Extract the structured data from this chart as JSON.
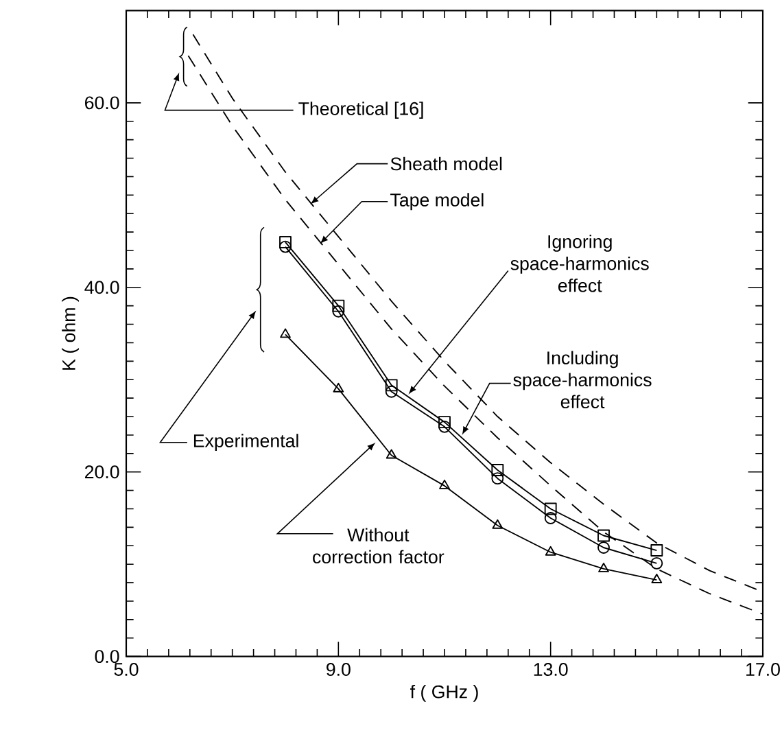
{
  "chart_data": {
    "type": "line",
    "xlabel": "f ( GHz )",
    "ylabel": "K ( ohm )",
    "xlim": [
      5,
      17
    ],
    "ylim": [
      0,
      70
    ],
    "xticks": [
      {
        "value": 5,
        "label": "5.0"
      },
      {
        "value": 9,
        "label": "9.0"
      },
      {
        "value": 13,
        "label": "13.0"
      },
      {
        "value": 17,
        "label": "17.0"
      }
    ],
    "yticks": [
      {
        "value": 0,
        "label": "0.0"
      },
      {
        "value": 20,
        "label": "20.0"
      },
      {
        "value": 40,
        "label": "40.0"
      },
      {
        "value": 60,
        "label": "60.0"
      }
    ],
    "grid": false,
    "series": [
      {
        "color": "#000000",
        "marker": "none",
        "line_style": "dashed",
        "x": [
          6.26,
          7,
          8,
          9,
          10,
          11,
          12,
          13,
          14,
          15,
          16,
          17
        ],
        "values": [
          67.4,
          60.5,
          52.5,
          45.5,
          38.5,
          32,
          26,
          21,
          16.5,
          12.3,
          9.3,
          7.0
        ]
      },
      {
        "color": "#000000",
        "marker": "none",
        "line_style": "dashed",
        "x": [
          6.17,
          7,
          8,
          9,
          10,
          11,
          12,
          13,
          14,
          15,
          16,
          17
        ],
        "values": [
          65.1,
          57.5,
          49.5,
          42.5,
          35.5,
          29.3,
          23.7,
          18.5,
          13.5,
          9.5,
          6.8,
          4.6
        ]
      },
      {
        "color": "#000000",
        "marker": "square",
        "line_style": "solid",
        "x": [
          8,
          9,
          10,
          11,
          12,
          13,
          14,
          15
        ],
        "values": [
          44.9,
          38.0,
          29.4,
          25.4,
          20.2,
          16.0,
          13.1,
          11.5
        ]
      },
      {
        "color": "#000000",
        "marker": "circle",
        "line_style": "solid",
        "x": [
          8,
          9,
          10,
          11,
          12,
          13,
          14,
          15
        ],
        "values": [
          44.4,
          37.4,
          28.7,
          24.9,
          19.3,
          15.0,
          11.8,
          10.1
        ]
      },
      {
        "color": "#000000",
        "marker": "triangle",
        "line_style": "solid",
        "x": [
          8,
          9,
          10,
          11,
          12,
          13,
          14,
          15
        ],
        "values": [
          34.9,
          29.0,
          21.8,
          18.5,
          14.2,
          11.3,
          9.5,
          8.3
        ]
      }
    ],
    "annotations": [
      "Theoretical [16]",
      {
        "text": "Sheath model",
        "x": 8.47,
        "y": 49.0
      },
      {
        "text": "Tape model",
        "x": 8.65,
        "y": 44.7
      },
      {
        "text": "Ignoring space-harmonics effect",
        "x": 10.32,
        "y": 28.4
      },
      {
        "text": "Including space-harmonics effect",
        "x": 11.33,
        "y": 24.0
      },
      "Experimental",
      {
        "text": "Without correction factor",
        "x": 9.7,
        "y": 23.2
      }
    ]
  }
}
